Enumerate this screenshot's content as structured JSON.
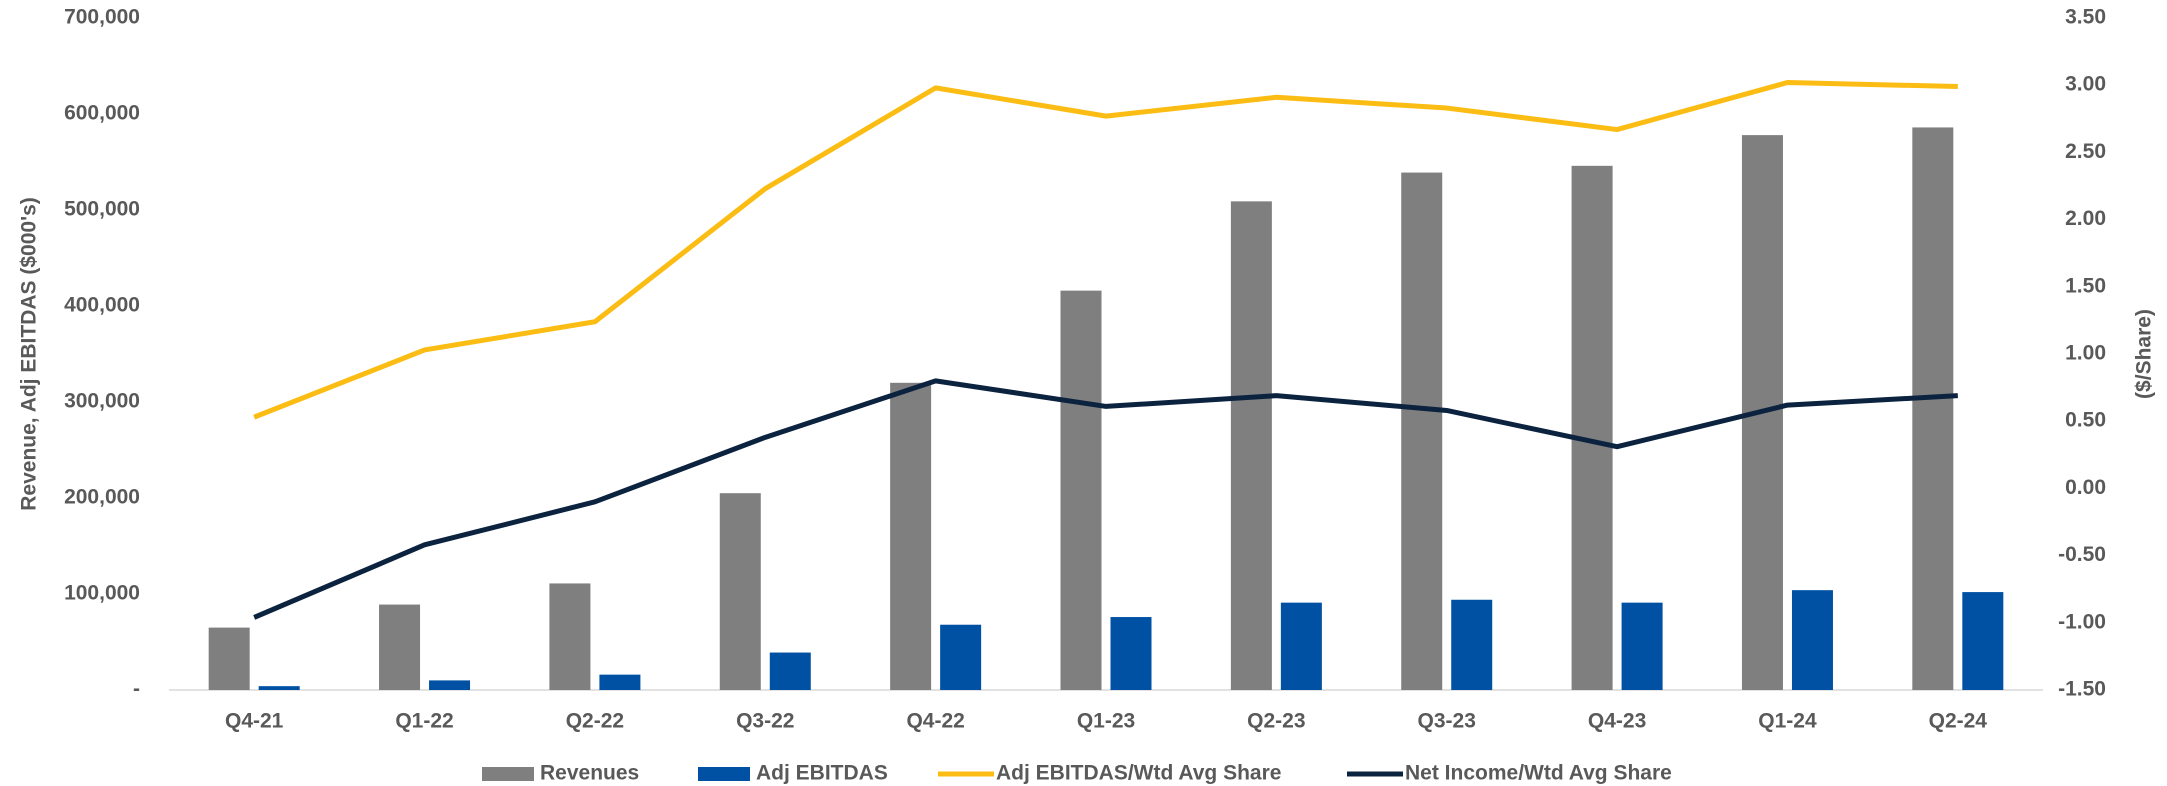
{
  "chart_data": {
    "type": "bar_line",
    "ylabel": "Revenue, Adj EBITDAS ($000's)",
    "y2label": "($/Share)",
    "categories": [
      "Q4-21",
      "Q1-22",
      "Q2-22",
      "Q3-22",
      "Q4-22",
      "Q1-23",
      "Q2-23",
      "Q3-23",
      "Q4-23",
      "Q1-24",
      "Q2-24"
    ],
    "series": [
      {
        "name": "Revenues",
        "type": "bar",
        "color": "#7f7f7f",
        "values": [
          65000,
          89000,
          111000,
          205000,
          320000,
          416000,
          509000,
          539000,
          546000,
          578000,
          586000
        ]
      },
      {
        "name": "Adj EBITDAS",
        "type": "bar",
        "color": "#0050a4",
        "values": [
          4000,
          10000,
          16000,
          39000,
          68000,
          76000,
          91000,
          94000,
          91000,
          104000,
          102000
        ]
      },
      {
        "name": "Adj EBITDAS/Wtd Avg Share",
        "type": "line",
        "axis": "y2",
        "color": "#fbbc13",
        "values": [
          0.53,
          1.03,
          1.24,
          2.23,
          2.98,
          2.77,
          2.91,
          2.83,
          2.67,
          3.02,
          2.99
        ]
      },
      {
        "name": "Net Income/Wtd Avg Share",
        "type": "line",
        "axis": "y2",
        "color": "#0c2340",
        "values": [
          -0.96,
          -0.42,
          -0.1,
          0.38,
          0.8,
          0.61,
          0.69,
          0.58,
          0.31,
          0.62,
          0.69
        ]
      }
    ],
    "ylim": [
      0,
      700000
    ],
    "yticks": [
      {
        "value": 0,
        "label": "-"
      },
      {
        "value": 100000,
        "label": "100,000"
      },
      {
        "value": 200000,
        "label": "200,000"
      },
      {
        "value": 300000,
        "label": "300,000"
      },
      {
        "value": 400000,
        "label": "400,000"
      },
      {
        "value": 500000,
        "label": "500,000"
      },
      {
        "value": 600000,
        "label": "600,000"
      },
      {
        "value": 700000,
        "label": "700,000"
      }
    ],
    "y2lim": [
      -1.5,
      3.5
    ],
    "y2ticks": [
      {
        "value": -1.5,
        "label": "-1.50"
      },
      {
        "value": -1,
        "label": "-1.00"
      },
      {
        "value": -0.5,
        "label": "-0.50"
      },
      {
        "value": 0,
        "label": "0.00"
      },
      {
        "value": 0.5,
        "label": "0.50"
      },
      {
        "value": 1,
        "label": "1.00"
      },
      {
        "value": 1.5,
        "label": "1.50"
      },
      {
        "value": 2,
        "label": "2.00"
      },
      {
        "value": 2.5,
        "label": "2.50"
      },
      {
        "value": 3,
        "label": "3.00"
      },
      {
        "value": 3.5,
        "label": "3.50"
      }
    ],
    "grid": false,
    "legend": "bottom"
  }
}
